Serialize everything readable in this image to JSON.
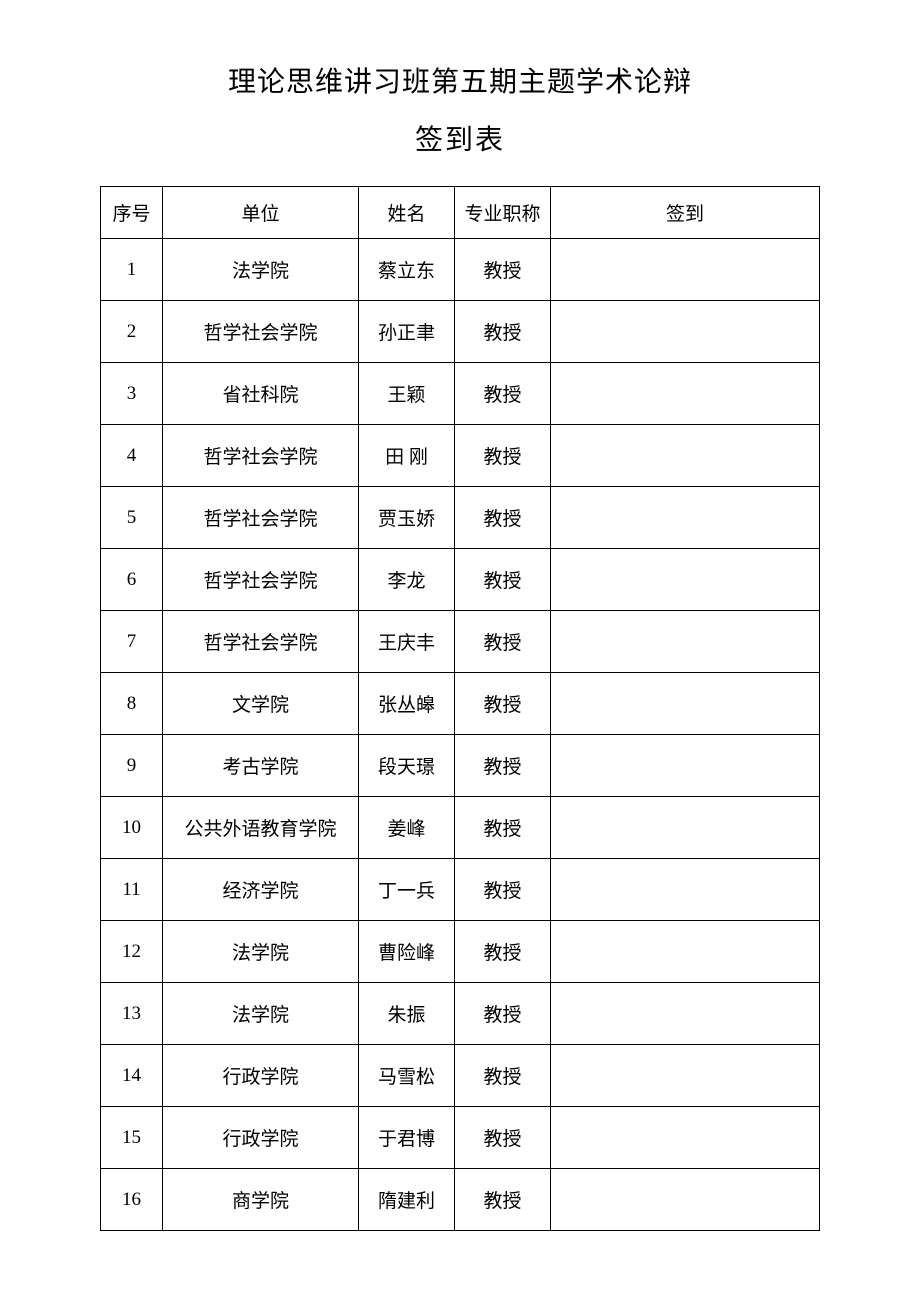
{
  "heading": {
    "title": "理论思维讲习班第五期主题学术论辩",
    "subtitle": "签到表"
  },
  "columns": {
    "seq": "序号",
    "unit": "单位",
    "name": "姓名",
    "protitle": "专业职称",
    "signin": "签到"
  },
  "rows": [
    {
      "seq": "1",
      "unit": "法学院",
      "name": "蔡立东",
      "protitle": "教授",
      "signin": ""
    },
    {
      "seq": "2",
      "unit": "哲学社会学院",
      "name": "孙正聿",
      "protitle": "教授",
      "signin": ""
    },
    {
      "seq": "3",
      "unit": "省社科院",
      "name": "王颖",
      "protitle": "教授",
      "signin": ""
    },
    {
      "seq": "4",
      "unit": "哲学社会学院",
      "name": "田 刚",
      "protitle": "教授",
      "signin": ""
    },
    {
      "seq": "5",
      "unit": "哲学社会学院",
      "name": "贾玉娇",
      "protitle": "教授",
      "signin": ""
    },
    {
      "seq": "6",
      "unit": "哲学社会学院",
      "name": "李龙",
      "protitle": "教授",
      "signin": ""
    },
    {
      "seq": "7",
      "unit": "哲学社会学院",
      "name": "王庆丰",
      "protitle": "教授",
      "signin": ""
    },
    {
      "seq": "8",
      "unit": "文学院",
      "name": "张丛皞",
      "protitle": "教授",
      "signin": ""
    },
    {
      "seq": "9",
      "unit": "考古学院",
      "name": "段天璟",
      "protitle": "教授",
      "signin": ""
    },
    {
      "seq": "10",
      "unit": "公共外语教育学院",
      "name": "姜峰",
      "protitle": "教授",
      "signin": ""
    },
    {
      "seq": "11",
      "unit": "经济学院",
      "name": "丁一兵",
      "protitle": "教授",
      "signin": ""
    },
    {
      "seq": "12",
      "unit": "法学院",
      "name": "曹险峰",
      "protitle": "教授",
      "signin": ""
    },
    {
      "seq": "13",
      "unit": "法学院",
      "name": "朱振",
      "protitle": "教授",
      "signin": ""
    },
    {
      "seq": "14",
      "unit": "行政学院",
      "name": "马雪松",
      "protitle": "教授",
      "signin": ""
    },
    {
      "seq": "15",
      "unit": "行政学院",
      "name": "于君博",
      "protitle": "教授",
      "signin": ""
    },
    {
      "seq": "16",
      "unit": "商学院",
      "name": "隋建利",
      "protitle": "教授",
      "signin": ""
    }
  ],
  "style": {
    "page_bg": "#ffffff",
    "text_color": "#000000",
    "border_color": "#000000",
    "title_fontsize": 28,
    "body_fontsize": 19,
    "header_row_height": 52,
    "data_row_height": 62,
    "col_widths": {
      "seq": 62,
      "unit": 196,
      "name": 96,
      "protitle": 96
    }
  }
}
